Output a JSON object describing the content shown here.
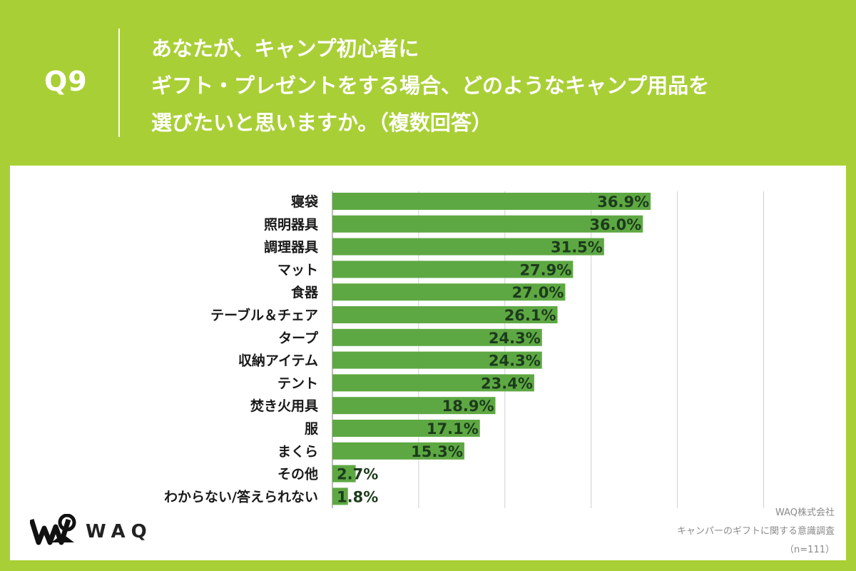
{
  "header": {
    "question": "Q9",
    "title_lines": [
      "あなたが、キャンプ初心者に",
      "ギフト・プレゼントをする場合、どのようなキャンプ用品を",
      "選びたいと思いますか。（複数回答）"
    ]
  },
  "colors": {
    "background": "#a9cf36",
    "bar": "#5ea843",
    "panel": "#ffffff"
  },
  "chart_data": {
    "type": "bar",
    "orientation": "horizontal",
    "categories": [
      "寝袋",
      "照明器具",
      "調理器具",
      "マット",
      "食器",
      "テーブル＆チェア",
      "タープ",
      "収納アイテム",
      "テント",
      "焚き火用具",
      "服",
      "まくら",
      "その他",
      "わからない/答えられない"
    ],
    "values": [
      36.9,
      36.0,
      31.5,
      27.9,
      27.0,
      26.1,
      24.3,
      24.3,
      23.4,
      18.9,
      17.1,
      15.3,
      2.7,
      1.8
    ],
    "value_labels": [
      "36.9%",
      "36.0%",
      "31.5%",
      "27.9%",
      "27.0%",
      "26.1%",
      "24.3%",
      "24.3%",
      "23.4%",
      "18.9%",
      "17.1%",
      "15.3%",
      "2.7%",
      "1.8%"
    ],
    "xlim": [
      0,
      50
    ],
    "gridlines": [
      0,
      10,
      20,
      30,
      40,
      50
    ],
    "unit": "%"
  },
  "footer": {
    "logo_text": "WAQ",
    "company": "WAQ株式会社",
    "survey": "キャンパーのギフトに関する意識調査",
    "sample": "（n=111）"
  }
}
